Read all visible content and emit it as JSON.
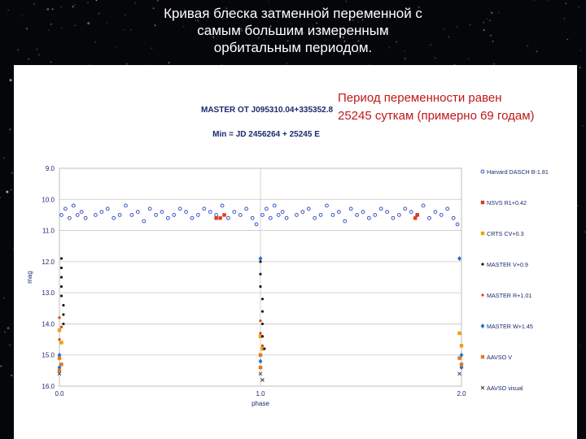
{
  "slide": {
    "title_lines": [
      "Кривая блеска затменной переменной с",
      "самым большим измеренным",
      "орбитальным периодом."
    ]
  },
  "annotation": {
    "lines": [
      "Период переменности равен",
      "25245 суткам (примерно 69 годам)"
    ]
  },
  "colors": {
    "background": "#05060a",
    "panel": "#ffffff",
    "annotation": "#c01818",
    "harvard": "#3b55c8",
    "nsvs": "#e03a1a",
    "crts": "#f0a000",
    "master_v": "#1a1a1a",
    "master_w": "#2d6fc7",
    "aavso_v": "#e07a20",
    "aavso_visual": "#404040"
  },
  "chart_data": {
    "type": "scatter",
    "title": "MASTER OT J095310.04+335352.8",
    "subtitle": "Min = JD 2456264 + 25245 E",
    "xlabel": "phase",
    "ylabel": "mag",
    "xlim": [
      0.0,
      2.0
    ],
    "ylim": [
      9.0,
      16.0
    ],
    "y_inverted": true,
    "grid": true,
    "legend_placement": "right",
    "x_ticks": [
      "0.0",
      "1.0",
      "2.0"
    ],
    "y_ticks": [
      "9.0",
      "10.0",
      "11.0",
      "12.0",
      "13.0",
      "14.0",
      "15.0",
      "16.0"
    ],
    "series": [
      {
        "name": "Harvard DASCH B-1.81",
        "color_key": "harvard",
        "marker": "open-circle",
        "x": [
          0.01,
          0.03,
          0.05,
          0.07,
          0.09,
          0.11,
          0.13,
          0.18,
          0.21,
          0.24,
          0.27,
          0.3,
          0.33,
          0.36,
          0.39,
          0.42,
          0.45,
          0.48,
          0.51,
          0.54,
          0.57,
          0.6,
          0.63,
          0.66,
          0.69,
          0.72,
          0.75,
          0.78,
          0.81,
          0.84,
          0.87,
          0.9,
          0.93,
          0.96,
          0.98,
          1.01,
          1.03,
          1.05,
          1.07,
          1.09,
          1.11,
          1.13,
          1.18,
          1.21,
          1.24,
          1.27,
          1.3,
          1.33,
          1.36,
          1.39,
          1.42,
          1.45,
          1.48,
          1.51,
          1.54,
          1.57,
          1.6,
          1.63,
          1.66,
          1.69,
          1.72,
          1.75,
          1.78,
          1.81,
          1.84,
          1.87,
          1.9,
          1.93,
          1.96,
          1.98
        ],
        "y": [
          10.5,
          10.3,
          10.6,
          10.2,
          10.5,
          10.4,
          10.6,
          10.5,
          10.4,
          10.3,
          10.6,
          10.5,
          10.2,
          10.5,
          10.4,
          10.7,
          10.3,
          10.5,
          10.4,
          10.6,
          10.5,
          10.3,
          10.4,
          10.6,
          10.5,
          10.3,
          10.4,
          10.5,
          10.2,
          10.6,
          10.4,
          10.5,
          10.3,
          10.6,
          10.8,
          10.5,
          10.3,
          10.6,
          10.2,
          10.5,
          10.4,
          10.6,
          10.5,
          10.4,
          10.3,
          10.6,
          10.5,
          10.2,
          10.5,
          10.4,
          10.7,
          10.3,
          10.5,
          10.4,
          10.6,
          10.5,
          10.3,
          10.4,
          10.6,
          10.5,
          10.3,
          10.4,
          10.5,
          10.2,
          10.6,
          10.4,
          10.5,
          10.3,
          10.6,
          10.8
        ]
      },
      {
        "name": "NSVS R1+0.42",
        "color_key": "nsvs",
        "marker": "square",
        "x": [
          0.78,
          0.8,
          0.82,
          1.77,
          1.78
        ],
        "y": [
          10.6,
          10.6,
          10.5,
          10.6,
          10.5
        ]
      },
      {
        "name": "CRTS CV+0.3",
        "color_key": "crts",
        "marker": "square",
        "x": [
          0.0,
          0.01,
          1.0,
          1.01,
          1.99,
          2.0
        ],
        "y": [
          14.2,
          14.6,
          14.4,
          14.8,
          14.3,
          14.7
        ]
      },
      {
        "name": "MASTER V+0.9",
        "color_key": "master_v",
        "marker": "dot",
        "x": [
          0.01,
          0.01,
          0.01,
          0.01,
          0.01,
          0.02,
          0.02,
          0.02,
          1.0,
          1.0,
          1.0,
          1.01,
          1.01,
          1.01,
          1.01,
          1.02
        ],
        "y": [
          11.9,
          12.2,
          12.5,
          12.8,
          13.1,
          13.4,
          13.7,
          14.0,
          12.0,
          12.4,
          12.8,
          13.2,
          13.6,
          14.0,
          14.4,
          14.8
        ]
      },
      {
        "name": "MASTER R+1.01",
        "color_key": "nsvs",
        "marker": "dot",
        "x": [
          0.0,
          0.01,
          0.0,
          1.0,
          1.0,
          1.01
        ],
        "y": [
          13.8,
          14.1,
          14.5,
          13.9,
          14.3,
          14.7
        ]
      },
      {
        "name": "MASTER W+1.45",
        "color_key": "master_w",
        "marker": "diamond",
        "x": [
          0.0,
          0.0,
          1.0,
          1.0,
          1.99,
          2.0,
          2.0
        ],
        "y": [
          15.0,
          15.4,
          11.9,
          15.2,
          11.9,
          15.0,
          15.4
        ]
      },
      {
        "name": "AAVSO V",
        "color_key": "aavso_v",
        "marker": "square",
        "x": [
          0.0,
          0.01,
          0.0,
          1.0,
          1.0,
          1.99,
          2.0
        ],
        "y": [
          15.1,
          15.3,
          15.5,
          15.0,
          15.4,
          15.1,
          15.3
        ]
      },
      {
        "name": "AAVSO visual",
        "color_key": "aavso_visual",
        "marker": "x",
        "x": [
          0.0,
          1.0,
          1.01,
          1.99
        ],
        "y": [
          15.6,
          15.6,
          15.8,
          15.6
        ]
      }
    ]
  }
}
